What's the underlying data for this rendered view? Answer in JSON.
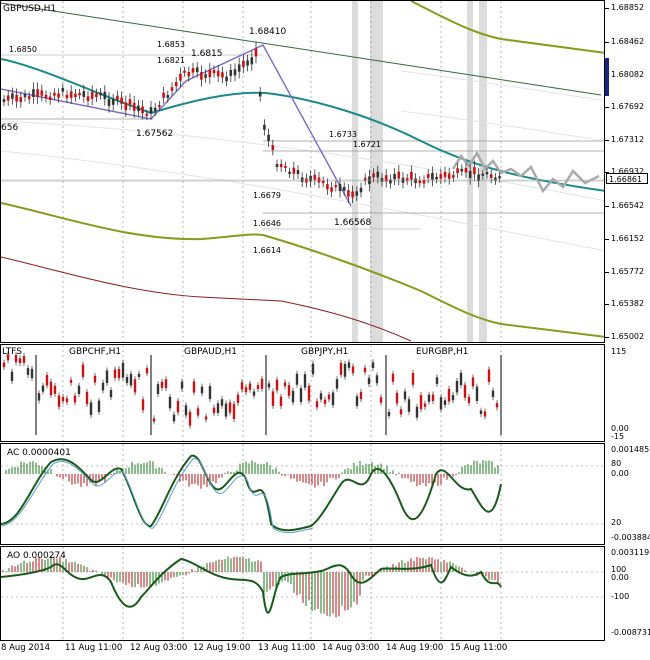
{
  "main": {
    "title": "GBPUSD,H1",
    "current_price": "1.66861",
    "scale": [
      "1.68852",
      "1.68462",
      "1.68082",
      "1.67692",
      "1.67312",
      "1.66932",
      "1.66542",
      "1.66152",
      "1.65772",
      "1.65382",
      "1.65002"
    ],
    "annotations": {
      "a1": "1.6850",
      "a2": "1.6853",
      "a3": "1.6821",
      "a4": "1.6815",
      "a5": "1.68410",
      "a6": "1.67562",
      "a7": "656",
      "a8": "1.6733",
      "a9": "1.6721",
      "a10": "1.6679",
      "a11": "1.66568",
      "a12": "1.6646",
      "a13": "1.6614"
    }
  },
  "sub1": {
    "tf_label": "LTFS",
    "pairs": [
      "GBPCHF,H1",
      "GBPAUD,H1",
      "GBPJPY,H1",
      "EURGBP,H1"
    ],
    "scale": [
      "115",
      "0.00",
      "-15"
    ]
  },
  "sub2": {
    "label": "AC 0.0000401",
    "scale": [
      "0.0014857",
      "80",
      "0.00",
      "20",
      "-0.003884"
    ]
  },
  "sub3": {
    "label": "AO 0.000274",
    "scale": [
      "0.003119",
      "100",
      "0.00",
      "-100",
      "-0.008731"
    ]
  },
  "time_axis": [
    "8 Aug 2014",
    "11 Aug 11:00",
    "12 Aug 03:00",
    "12 Aug 19:00",
    "13 Aug 11:00",
    "14 Aug 03:00",
    "14 Aug 19:00",
    "15 Aug 11:00"
  ],
  "colors": {
    "teal": "#1a8a8a",
    "olive": "#8a9a1a",
    "darkred": "#8b1a1a",
    "purple": "#7b68c8",
    "bull": "#333333",
    "bear": "#d01010",
    "green": "#1a5a1a"
  }
}
